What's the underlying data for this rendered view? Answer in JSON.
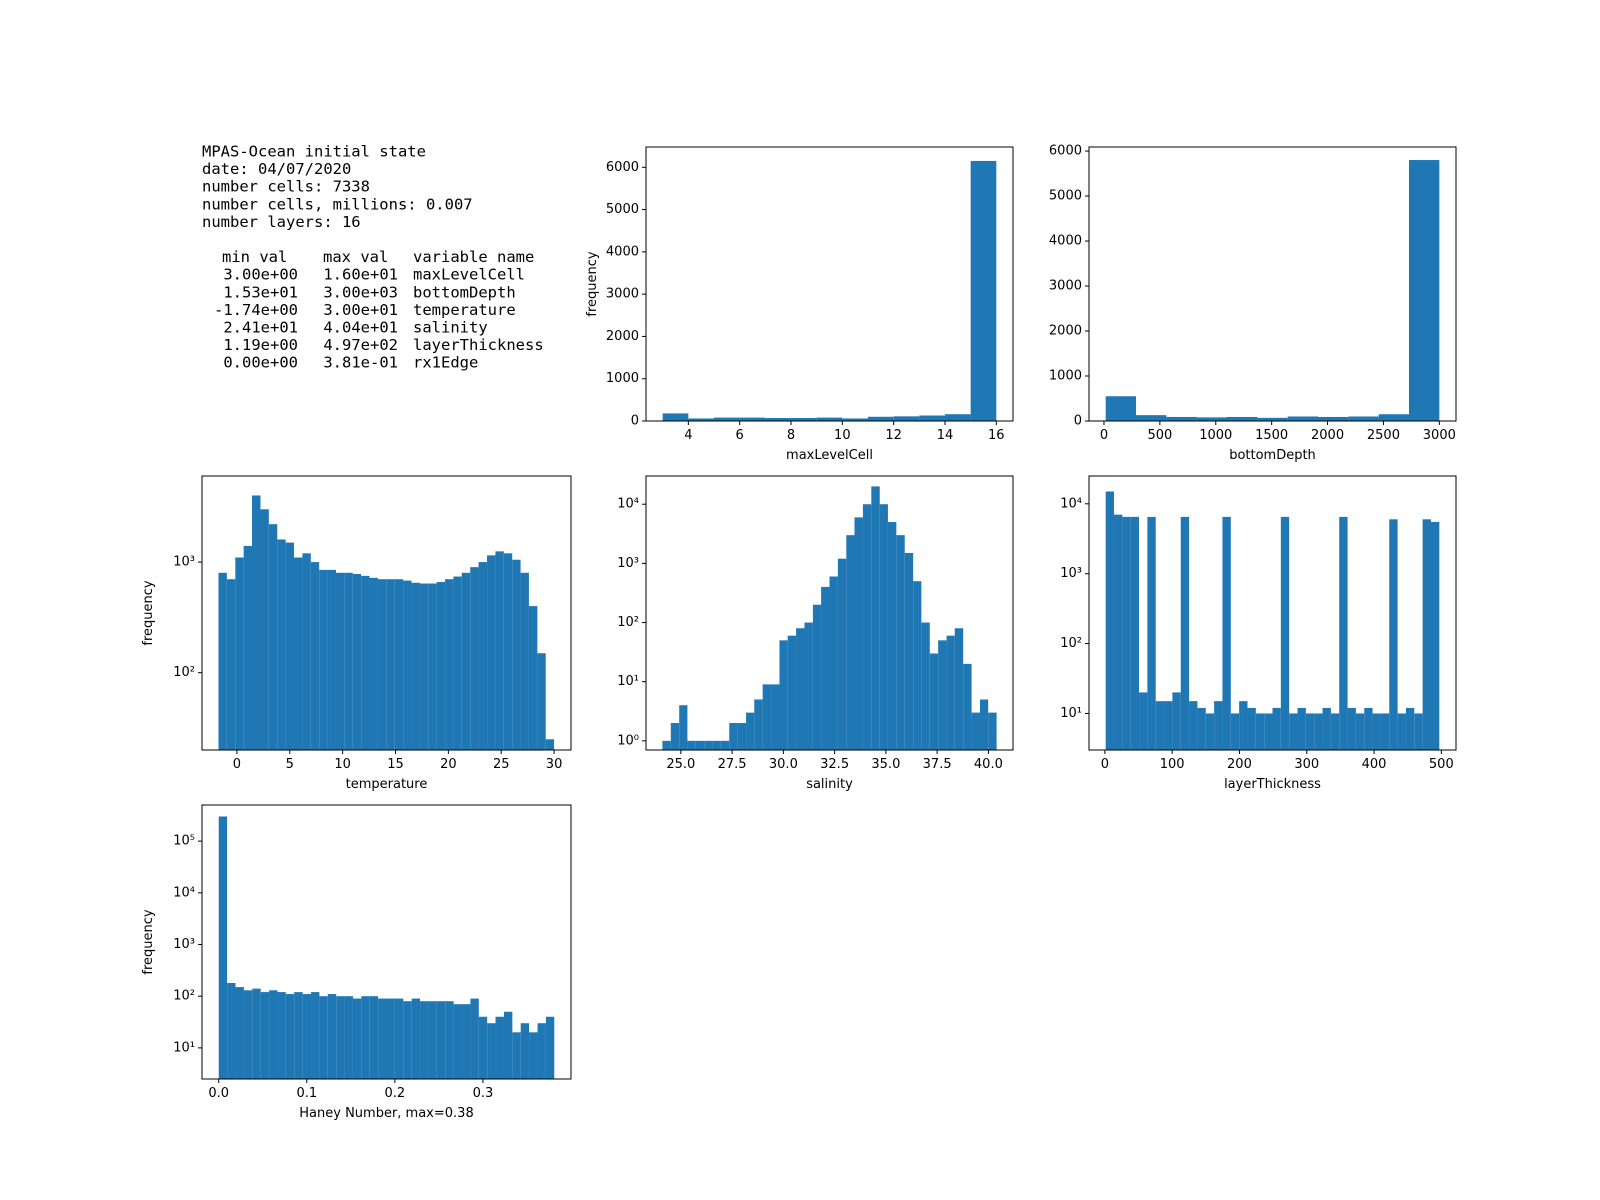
{
  "text_panel": {
    "header_lines": [
      "MPAS-Ocean initial state",
      "date: 04/07/2020",
      "number cells: 7338",
      "number cells, millions:  0.007",
      "number layers: 16"
    ],
    "table_header": [
      "min val",
      "max val",
      "variable name"
    ],
    "table_rows": [
      [
        "3.00e+00",
        "1.60e+01",
        "maxLevelCell"
      ],
      [
        "1.53e+01",
        "3.00e+03",
        "bottomDepth"
      ],
      [
        "-1.74e+00",
        "3.00e+01",
        "temperature"
      ],
      [
        "2.41e+01",
        "4.04e+01",
        "salinity"
      ],
      [
        "1.19e+00",
        "4.97e+02",
        "layerThickness"
      ],
      [
        "0.00e+00",
        "3.81e-01",
        "rx1Edge"
      ]
    ]
  },
  "chart_data": [
    {
      "type": "histogram",
      "xlabel": "maxLevelCell",
      "ylabel": "frequency",
      "color": "#1f77b4",
      "log": false,
      "bins": [
        3,
        4,
        5,
        6,
        7,
        8,
        9,
        10,
        11,
        12,
        13,
        14,
        15,
        16
      ],
      "values": [
        180,
        60,
        80,
        80,
        70,
        70,
        80,
        60,
        100,
        110,
        130,
        160,
        6150
      ],
      "xlim": [
        2.35,
        16.65
      ],
      "ylim": [
        0,
        6480
      ],
      "xticks": [
        4,
        6,
        8,
        10,
        12,
        14,
        16
      ],
      "yticks": [
        0,
        1000,
        2000,
        3000,
        4000,
        5000,
        6000
      ]
    },
    {
      "type": "histogram",
      "xlabel": "bottomDepth",
      "color": "#1f77b4",
      "log": false,
      "bins": [
        15.3,
        286.6,
        558,
        829.3,
        1100.6,
        1372,
        1643.3,
        1914.6,
        2186,
        2457.3,
        2728.6,
        3000
      ],
      "values": [
        550,
        130,
        90,
        80,
        90,
        70,
        100,
        90,
        100,
        150,
        5800
      ],
      "xlim": [
        -134,
        3149
      ],
      "ylim": [
        0,
        6090
      ],
      "xticks": [
        0,
        500,
        1000,
        1500,
        2000,
        2500,
        3000
      ],
      "yticks": [
        0,
        1000,
        2000,
        3000,
        4000,
        5000,
        6000
      ]
    },
    {
      "type": "histogram",
      "xlabel": "temperature",
      "ylabel": "frequency",
      "color": "#1f77b4",
      "log": true,
      "bins": [
        -1.74,
        -0.95,
        -0.15,
        0.64,
        1.43,
        2.23,
        3.02,
        3.82,
        4.61,
        5.4,
        6.2,
        6.99,
        7.78,
        8.58,
        9.37,
        10.16,
        10.96,
        11.75,
        12.54,
        13.34,
        14.13,
        14.93,
        15.72,
        16.51,
        17.31,
        18.1,
        18.89,
        19.69,
        20.48,
        21.27,
        22.07,
        22.86,
        23.66,
        24.45,
        25.24,
        26.04,
        26.83,
        27.62,
        28.42,
        29.21,
        30.0
      ],
      "values": [
        800,
        700,
        1100,
        1400,
        4000,
        3000,
        2200,
        1600,
        1500,
        1100,
        1200,
        1000,
        850,
        850,
        800,
        800,
        780,
        750,
        720,
        700,
        700,
        700,
        680,
        650,
        640,
        640,
        660,
        700,
        740,
        800,
        900,
        1000,
        1150,
        1250,
        1200,
        1050,
        800,
        400,
        150,
        25
      ],
      "xlim": [
        -3.3,
        31.6
      ],
      "ylim": [
        20,
        6000
      ],
      "xticks": [
        0,
        5,
        10,
        15,
        20,
        25,
        30
      ],
      "yticks": [
        {
          "value": 100,
          "label": "10²"
        },
        {
          "value": 1000,
          "label": "10³"
        }
      ]
    },
    {
      "type": "histogram",
      "xlabel": "salinity",
      "color": "#1f77b4",
      "log": true,
      "bins": [
        24.1,
        24.51,
        24.92,
        25.32,
        25.73,
        26.14,
        26.55,
        26.95,
        27.36,
        27.77,
        28.18,
        28.58,
        28.99,
        29.4,
        29.81,
        30.21,
        30.62,
        31.03,
        31.44,
        31.84,
        32.25,
        32.66,
        33.07,
        33.47,
        33.88,
        34.29,
        34.7,
        35.1,
        35.51,
        35.92,
        36.33,
        36.73,
        37.14,
        37.55,
        37.96,
        38.36,
        38.77,
        39.18,
        39.59,
        39.99,
        40.4
      ],
      "values": [
        1,
        2,
        4,
        1,
        1,
        1,
        1,
        1,
        2,
        2,
        3,
        5,
        9,
        9,
        50,
        60,
        80,
        100,
        200,
        400,
        600,
        1200,
        3000,
        6000,
        10000,
        20000,
        10000,
        5000,
        3000,
        1500,
        500,
        100,
        30,
        50,
        60,
        80,
        20,
        3,
        5,
        3
      ],
      "xlim": [
        23.3,
        41.2
      ],
      "ylim": [
        0.7,
        30000
      ],
      "xticks": [
        {
          "value": 25,
          "label": "25.0"
        },
        27.5,
        {
          "value": 30,
          "label": "30.0"
        },
        32.5,
        {
          "value": 35,
          "label": "35.0"
        },
        37.5,
        {
          "value": 40,
          "label": "40.0"
        }
      ],
      "yticks": [
        {
          "value": 1,
          "label": "10⁰"
        },
        {
          "value": 10,
          "label": "10¹"
        },
        {
          "value": 100,
          "label": "10²"
        },
        {
          "value": 1000,
          "label": "10³"
        },
        {
          "value": 10000,
          "label": "10⁴"
        }
      ]
    },
    {
      "type": "histogram",
      "xlabel": "layerThickness",
      "color": "#1f77b4",
      "log": true,
      "bins": [
        1.19,
        13.59,
        25.98,
        38.38,
        50.77,
        63.17,
        75.56,
        87.96,
        100.35,
        112.75,
        125.14,
        137.54,
        149.93,
        162.33,
        174.72,
        187.12,
        199.51,
        211.91,
        224.3,
        236.7,
        249.09,
        261.49,
        273.88,
        286.28,
        298.67,
        311.07,
        323.46,
        335.86,
        348.25,
        360.65,
        373.04,
        385.44,
        397.83,
        410.23,
        422.62,
        435.02,
        447.41,
        459.81,
        472.2,
        484.6,
        497.0
      ],
      "values": [
        15000,
        7000,
        6500,
        6500,
        20,
        6500,
        15,
        15,
        20,
        6500,
        15,
        12,
        10,
        15,
        6500,
        10,
        15,
        12,
        10,
        10,
        12,
        6500,
        10,
        12,
        10,
        10,
        12,
        10,
        6500,
        12,
        10,
        12,
        10,
        10,
        6000,
        10,
        12,
        10,
        6000,
        5500
      ],
      "xlim": [
        -23.6,
        521.8
      ],
      "ylim": [
        3,
        25000
      ],
      "xticks": [
        0,
        100,
        200,
        300,
        400,
        500
      ],
      "yticks": [
        {
          "value": 10,
          "label": "10¹"
        },
        {
          "value": 100,
          "label": "10²"
        },
        {
          "value": 1000,
          "label": "10³"
        },
        {
          "value": 10000,
          "label": "10⁴"
        }
      ]
    },
    {
      "type": "histogram",
      "xlabel": "Haney Number, max=0.38",
      "ylabel": "frequency",
      "color": "#1f77b4",
      "log": true,
      "bins": [
        0,
        0.0095,
        0.019,
        0.0286,
        0.0381,
        0.0476,
        0.0572,
        0.0667,
        0.0762,
        0.0857,
        0.0953,
        0.1048,
        0.1143,
        0.1238,
        0.1334,
        0.1429,
        0.1524,
        0.1619,
        0.1715,
        0.181,
        0.1905,
        0.2,
        0.2096,
        0.2191,
        0.2286,
        0.2381,
        0.2477,
        0.2572,
        0.2667,
        0.2762,
        0.2858,
        0.2953,
        0.3048,
        0.3143,
        0.3239,
        0.3334,
        0.3429,
        0.3524,
        0.362,
        0.3715,
        0.381
      ],
      "values": [
        300000,
        180,
        150,
        130,
        140,
        120,
        130,
        120,
        110,
        120,
        110,
        120,
        100,
        110,
        100,
        100,
        90,
        100,
        100,
        90,
        90,
        90,
        80,
        90,
        80,
        80,
        80,
        80,
        70,
        70,
        90,
        40,
        30,
        40,
        50,
        20,
        30,
        20,
        30,
        40
      ],
      "xlim": [
        -0.019,
        0.4
      ],
      "ylim": [
        2.5,
        500000
      ],
      "xticks": [
        {
          "value": 0,
          "label": "0.0"
        },
        0.1,
        0.2,
        0.3
      ],
      "yticks": [
        {
          "value": 10,
          "label": "10¹"
        },
        {
          "value": 100,
          "label": "10²"
        },
        {
          "value": 1000,
          "label": "10³"
        },
        {
          "value": 10000,
          "label": "10⁴"
        },
        {
          "value": 100000,
          "label": "10⁵"
        }
      ]
    }
  ]
}
